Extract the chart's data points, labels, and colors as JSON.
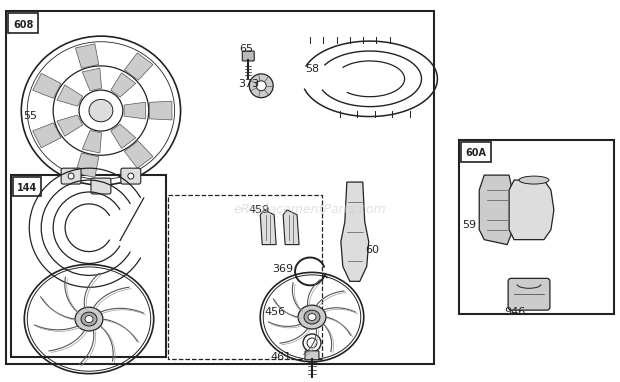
{
  "bg_color": "#ffffff",
  "text_color": "#111111",
  "watermark": "eReplacementParts.com",
  "watermark_color": "#cccccc",
  "watermark_alpha": 0.6,
  "figsize": [
    6.2,
    3.82
  ],
  "dpi": 100
}
